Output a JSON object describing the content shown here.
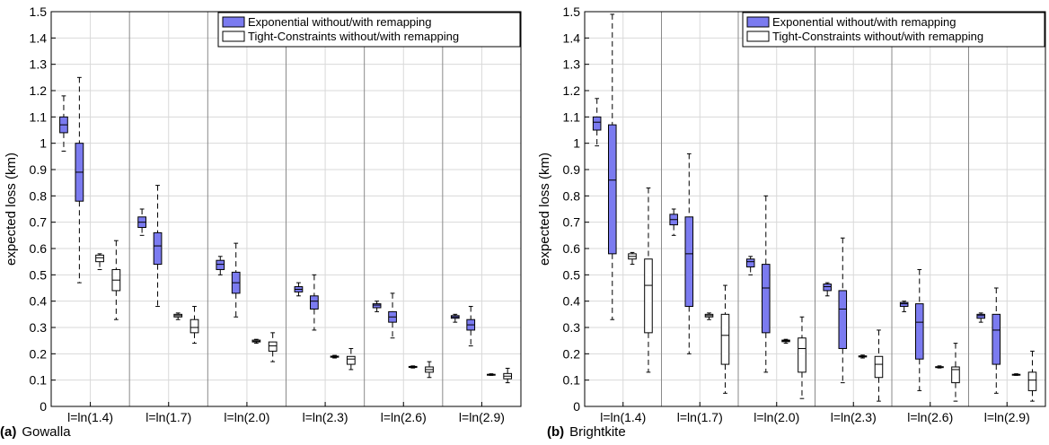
{
  "colors": {
    "exp": "#7b7bf0",
    "tight": "#ffffff",
    "line": "#000000",
    "grid": "#d9d9d9"
  },
  "chart_data": [
    {
      "type": "boxplot",
      "caption_tag": "(a)",
      "caption_name": "Gowalla",
      "ylabel": "expected loss (km)",
      "ylim": [
        0,
        1.5
      ],
      "yticks": [
        0,
        0.1,
        0.2,
        0.3,
        0.4,
        0.5,
        0.6,
        0.7,
        0.8,
        0.9,
        1,
        1.1,
        1.2,
        1.3,
        1.4,
        1.5
      ],
      "ytick_labels": [
        "0",
        "0.1",
        "0.2",
        "0.3",
        "0.4",
        "0.5",
        "0.6",
        "0.7",
        "0.8",
        "0.9",
        "1",
        "1.1",
        "1.2",
        "1.3",
        "1.4",
        "1.5"
      ],
      "grid": true,
      "legend_position": "top-right",
      "legend": [
        "Exponential without/with remapping",
        "Tight-Constraints without/with remapping"
      ],
      "categories": [
        "l=ln(1.4)",
        "l=ln(1.7)",
        "l=ln(2.0)",
        "l=ln(2.3)",
        "l=ln(2.6)",
        "l=ln(2.9)"
      ],
      "groups": [
        {
          "exp_without": [
            0.97,
            1.04,
            1.07,
            1.1,
            1.18
          ],
          "exp_with": [
            0.47,
            0.78,
            0.89,
            1.0,
            1.25
          ],
          "tight_without": [
            0.52,
            0.55,
            0.565,
            0.575,
            0.58
          ],
          "tight_with": [
            0.33,
            0.44,
            0.48,
            0.52,
            0.63
          ]
        },
        {
          "exp_without": [
            0.65,
            0.68,
            0.7,
            0.72,
            0.75
          ],
          "exp_with": [
            0.38,
            0.54,
            0.61,
            0.66,
            0.84
          ],
          "tight_without": [
            0.33,
            0.34,
            0.345,
            0.35,
            0.355
          ],
          "tight_with": [
            0.24,
            0.28,
            0.3,
            0.33,
            0.38
          ]
        },
        {
          "exp_without": [
            0.5,
            0.52,
            0.54,
            0.555,
            0.57
          ],
          "exp_with": [
            0.34,
            0.43,
            0.47,
            0.51,
            0.62
          ],
          "tight_without": [
            0.24,
            0.245,
            0.248,
            0.252,
            0.255
          ],
          "tight_with": [
            0.17,
            0.21,
            0.23,
            0.245,
            0.28
          ]
        },
        {
          "exp_without": [
            0.42,
            0.435,
            0.445,
            0.455,
            0.47
          ],
          "exp_with": [
            0.29,
            0.37,
            0.4,
            0.42,
            0.5
          ],
          "tight_without": [
            0.184,
            0.187,
            0.189,
            0.191,
            0.194
          ],
          "tight_with": [
            0.14,
            0.16,
            0.18,
            0.19,
            0.22
          ]
        },
        {
          "exp_without": [
            0.36,
            0.375,
            0.385,
            0.39,
            0.4
          ],
          "exp_with": [
            0.26,
            0.32,
            0.34,
            0.36,
            0.43
          ],
          "tight_without": [
            0.146,
            0.148,
            0.15,
            0.152,
            0.154
          ],
          "tight_with": [
            0.11,
            0.13,
            0.14,
            0.15,
            0.17
          ]
        },
        {
          "exp_without": [
            0.32,
            0.335,
            0.34,
            0.345,
            0.35
          ],
          "exp_with": [
            0.23,
            0.29,
            0.31,
            0.33,
            0.38
          ],
          "tight_without": [
            0.118,
            0.12,
            0.121,
            0.122,
            0.124
          ],
          "tight_with": [
            0.09,
            0.105,
            0.115,
            0.125,
            0.145
          ]
        }
      ]
    },
    {
      "type": "boxplot",
      "caption_tag": "(b)",
      "caption_name": "Brightkite",
      "ylabel": "expected loss (km)",
      "ylim": [
        0,
        1.5
      ],
      "yticks": [
        0,
        0.1,
        0.2,
        0.3,
        0.4,
        0.5,
        0.6,
        0.7,
        0.8,
        0.9,
        1,
        1.1,
        1.2,
        1.3,
        1.4,
        1.5
      ],
      "ytick_labels": [
        "0",
        "0.1",
        "0.2",
        "0.3",
        "0.4",
        "0.5",
        "0.6",
        "0.7",
        "0.8",
        "0.9",
        "1",
        "1.1",
        "1.2",
        "1.3",
        "1.4",
        "1.5"
      ],
      "grid": true,
      "legend_position": "top-right",
      "legend": [
        "Exponential without/with remapping",
        "Tight-Constraints without/with remapping"
      ],
      "categories": [
        "l=ln(1.4)",
        "l=ln(1.7)",
        "l=ln(2.0)",
        "l=ln(2.3)",
        "l=ln(2.6)",
        "l=ln(2.9)"
      ],
      "groups": [
        {
          "exp_without": [
            0.99,
            1.05,
            1.08,
            1.1,
            1.17
          ],
          "exp_with": [
            0.33,
            0.58,
            0.86,
            1.07,
            1.49
          ],
          "tight_without": [
            0.54,
            0.56,
            0.57,
            0.58,
            0.585
          ],
          "tight_with": [
            0.13,
            0.28,
            0.46,
            0.56,
            0.83
          ]
        },
        {
          "exp_without": [
            0.65,
            0.69,
            0.71,
            0.73,
            0.75
          ],
          "exp_with": [
            0.2,
            0.38,
            0.58,
            0.72,
            0.96
          ],
          "tight_without": [
            0.33,
            0.34,
            0.345,
            0.35,
            0.355
          ],
          "tight_with": [
            0.05,
            0.16,
            0.27,
            0.35,
            0.46
          ]
        },
        {
          "exp_without": [
            0.5,
            0.53,
            0.55,
            0.56,
            0.57
          ],
          "exp_with": [
            0.13,
            0.28,
            0.45,
            0.54,
            0.8
          ],
          "tight_without": [
            0.24,
            0.246,
            0.249,
            0.252,
            0.255
          ],
          "tight_with": [
            0.03,
            0.13,
            0.22,
            0.26,
            0.34
          ]
        },
        {
          "exp_without": [
            0.42,
            0.44,
            0.455,
            0.465,
            0.47
          ],
          "exp_with": [
            0.09,
            0.22,
            0.37,
            0.44,
            0.64
          ],
          "tight_without": [
            0.184,
            0.188,
            0.19,
            0.192,
            0.195
          ],
          "tight_with": [
            0.02,
            0.11,
            0.16,
            0.19,
            0.29
          ]
        },
        {
          "exp_without": [
            0.36,
            0.38,
            0.39,
            0.395,
            0.4
          ],
          "exp_with": [
            0.06,
            0.18,
            0.32,
            0.39,
            0.52
          ],
          "tight_without": [
            0.146,
            0.149,
            0.15,
            0.151,
            0.154
          ],
          "tight_with": [
            0.02,
            0.09,
            0.14,
            0.15,
            0.24
          ]
        },
        {
          "exp_without": [
            0.32,
            0.335,
            0.345,
            0.35,
            0.355
          ],
          "exp_with": [
            0.05,
            0.16,
            0.29,
            0.35,
            0.45
          ],
          "tight_without": [
            0.118,
            0.12,
            0.121,
            0.122,
            0.124
          ],
          "tight_with": [
            0.02,
            0.06,
            0.1,
            0.13,
            0.21
          ]
        }
      ]
    }
  ]
}
